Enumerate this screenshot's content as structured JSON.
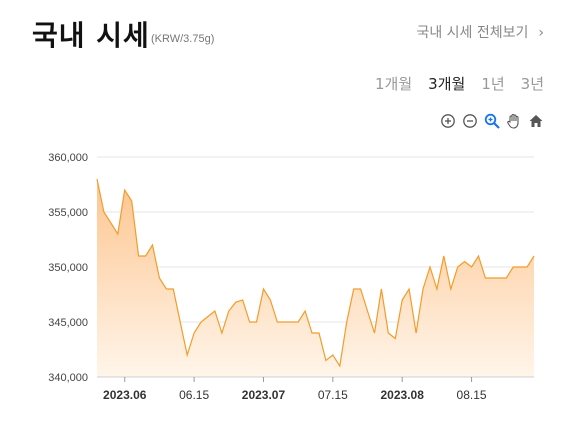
{
  "header": {
    "title": "국내 시세",
    "unit": "(KRW/3.75g)",
    "view_all_label": "국내 시세 전체보기",
    "view_all_icon": "chevron-right-icon"
  },
  "periods": [
    {
      "label": "1개월",
      "active": false
    },
    {
      "label": "3개월",
      "active": true
    },
    {
      "label": "1년",
      "active": false
    },
    {
      "label": "3년",
      "active": false
    }
  ],
  "toolbar": {
    "icons": [
      "zoom-in-icon",
      "zoom-out-icon",
      "magnify-icon",
      "pan-hand-icon",
      "home-icon"
    ],
    "accent": "#1a73e8"
  },
  "chart_data": {
    "type": "area",
    "title": "",
    "xlabel": "",
    "ylabel": "",
    "line_color": "#f39c2a",
    "fill_top": "#fdc58f",
    "fill_bottom": "#fff5ea",
    "ylim": [
      340000,
      362000
    ],
    "y_ticks": [
      "340,000",
      "345,000",
      "350,000",
      "355,000",
      "360,000"
    ],
    "y_tick_values": [
      340000,
      345000,
      350000,
      355000,
      360000
    ],
    "x_ticks": [
      {
        "label": "2023.06",
        "bold": true,
        "index": 4
      },
      {
        "label": "06.15",
        "bold": false,
        "index": 14
      },
      {
        "label": "2023.07",
        "bold": true,
        "index": 24
      },
      {
        "label": "07.15",
        "bold": false,
        "index": 34
      },
      {
        "label": "2023.08",
        "bold": true,
        "index": 44
      },
      {
        "label": "08.15",
        "bold": false,
        "index": 54
      }
    ],
    "n_points": 64,
    "series": [
      {
        "values": [
          358000,
          355000,
          354000,
          353000,
          357000,
          356000,
          351000,
          351000,
          352000,
          349000,
          348000,
          348000,
          345000,
          342000,
          344000,
          345000,
          345500,
          346000,
          344000,
          346000,
          346800,
          347000,
          345000,
          345000,
          348000,
          347000,
          345000,
          345000,
          345000,
          345000,
          346000,
          344000,
          344000,
          341500,
          342000,
          341000,
          345000,
          348000,
          348000,
          346000,
          344000,
          348000,
          344000,
          343500,
          347000,
          348000,
          344000,
          348000,
          350000,
          348000,
          351000,
          348000,
          350000,
          350500,
          350000,
          351000,
          349000,
          349000,
          349000,
          349000,
          350000,
          350000,
          350000,
          351000
        ]
      }
    ]
  }
}
